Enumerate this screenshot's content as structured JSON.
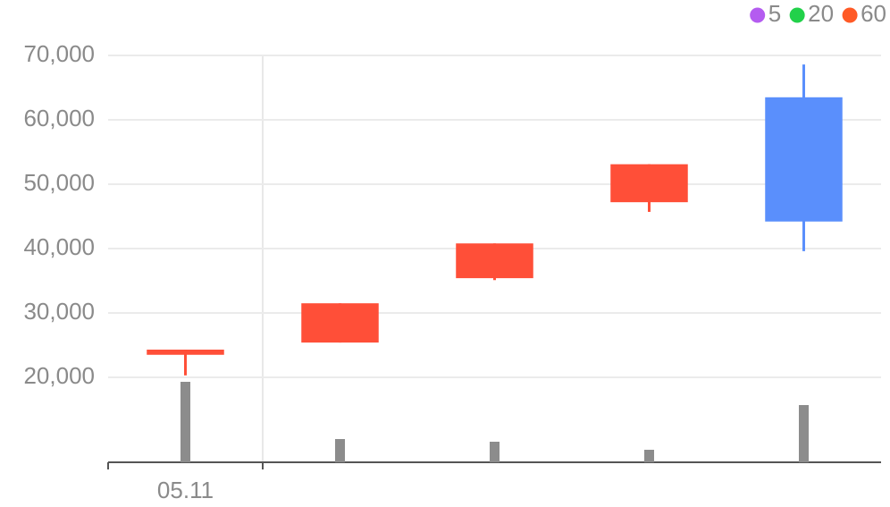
{
  "chart_data": {
    "type": "candlestick",
    "categories": [
      "05.11",
      null,
      null,
      null,
      null
    ],
    "open": [
      23500,
      25400,
      35400,
      47200,
      63500
    ],
    "close": [
      24300,
      31500,
      40800,
      53100,
      44200
    ],
    "high": [
      24300,
      31500,
      40800,
      53100,
      68600
    ],
    "low": [
      20300,
      25400,
      35100,
      45700,
      39600
    ],
    "up_color": "#ff4f38",
    "down_color": "#5a8ffc",
    "volume": [
      90,
      26,
      23,
      14,
      64
    ],
    "volume_color": "#8c8c8c",
    "volume_lim": [
      0,
      100
    ],
    "ylim": [
      6800,
      70000
    ],
    "yticks": [
      {
        "value": 20000,
        "label": "20,000"
      },
      {
        "value": 30000,
        "label": "30,000"
      },
      {
        "value": 40000,
        "label": "40,000"
      },
      {
        "value": 50000,
        "label": "50,000"
      },
      {
        "value": 60000,
        "label": "60,000"
      },
      {
        "value": 70000,
        "label": "70,000"
      }
    ],
    "grid": true,
    "legend": [
      {
        "name": "5",
        "color": "#b45cf0"
      },
      {
        "name": "20",
        "color": "#22d14a"
      },
      {
        "name": "60",
        "color": "#ff5a26"
      }
    ]
  }
}
